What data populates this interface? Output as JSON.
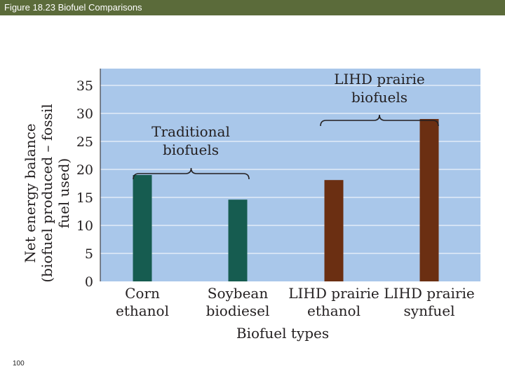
{
  "header": {
    "title": "Figure 18.23  Biofuel Comparisons"
  },
  "footer": {
    "page_number": "100"
  },
  "colors": {
    "header_bar": "#5b6b3a",
    "plot_background": "#a9c7ea",
    "gridline": "#ffffff",
    "traditional_bar": "#165c50",
    "lihd_bar": "#6b2f12"
  },
  "chart_data": {
    "type": "bar",
    "title": "",
    "xlabel": "Biofuel types",
    "ylabel_lines": [
      "Net energy balance",
      "(biofuel produced – fossil",
      "fuel used)"
    ],
    "categories": [
      [
        "Corn",
        "ethanol"
      ],
      [
        "Soybean",
        "biodiesel"
      ],
      [
        "LIHD prairie",
        "ethanol"
      ],
      [
        "LIHD prairie",
        "synfuel"
      ]
    ],
    "values": [
      19,
      14.6,
      18.1,
      29
    ],
    "bar_groups": [
      "traditional",
      "traditional",
      "lihd",
      "lihd"
    ],
    "ylim": [
      0,
      38
    ],
    "yticks": [
      0,
      5,
      10,
      15,
      20,
      25,
      30,
      35
    ],
    "grid": true,
    "annotations": [
      {
        "lines": [
          "Traditional",
          "biofuels"
        ],
        "spans": [
          0,
          1
        ]
      },
      {
        "lines": [
          "LIHD prairie",
          "biofuels"
        ],
        "spans": [
          2,
          3
        ]
      }
    ]
  }
}
